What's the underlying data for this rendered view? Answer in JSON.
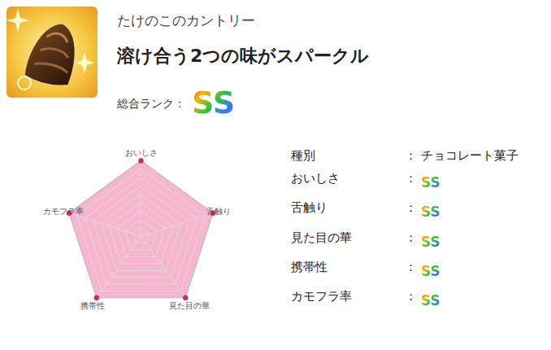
{
  "header": {
    "title": "たけのこのカントリー",
    "subtitle": "溶け合う2つの味がスパークル",
    "rank_label": "総合ランク：",
    "rank": "SS"
  },
  "chart_data": {
    "type": "radar",
    "categories": [
      "おいしさ",
      "舌触り",
      "見た目の華",
      "携帯性",
      "カモフラ率"
    ],
    "values": [
      9,
      9,
      9,
      9,
      9
    ],
    "color": "#f7b6cf",
    "ylim": [
      0,
      9
    ],
    "yticks": [
      1,
      2,
      3,
      4,
      5,
      6,
      7,
      8,
      9
    ],
    "grid": true,
    "tick_labels": false
  },
  "details": {
    "separator": "：",
    "rows": [
      [
        "種別",
        "チョコレート菓子"
      ],
      [
        "おいしさ",
        "SS"
      ],
      [
        "舌触り",
        "SS"
      ],
      [
        "見た目の華",
        "SS"
      ],
      [
        "携帯性",
        "SS"
      ],
      [
        "カモフラ率",
        "SS"
      ]
    ]
  }
}
